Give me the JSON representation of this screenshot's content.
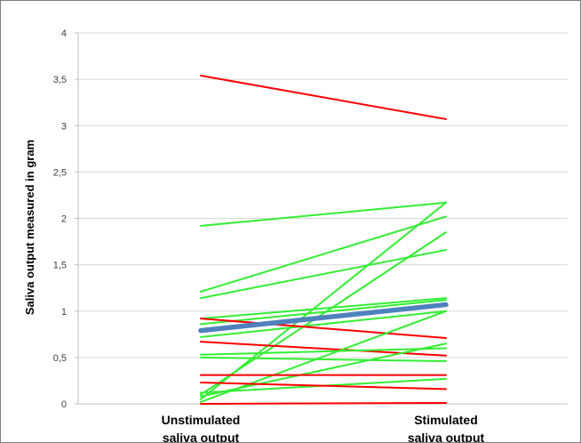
{
  "chart_data": {
    "type": "line",
    "title": "",
    "xlabel": "",
    "ylabel": "Saliva output measured in gram",
    "categories": [
      "Unstimulated\nsaliva output",
      "Stimulated\nsaliva output"
    ],
    "ylim": [
      0,
      4
    ],
    "yticks": [
      0,
      0.5,
      1,
      1.5,
      2,
      2.5,
      3,
      3.5,
      4
    ],
    "ytick_labels": [
      "0",
      "0,5",
      "1",
      "1,5",
      "2",
      "2,5",
      "3",
      "3,5",
      "4"
    ],
    "grid": true,
    "legend": "none",
    "series": [
      {
        "values": [
          3.54,
          3.07
        ],
        "color": "#ff0000"
      },
      {
        "values": [
          1.92,
          2.17
        ],
        "color": "#33ee33"
      },
      {
        "values": [
          1.21,
          2.02
        ],
        "color": "#33ee33"
      },
      {
        "values": [
          1.14,
          1.66
        ],
        "color": "#33ee33"
      },
      {
        "values": [
          0.05,
          2.17
        ],
        "color": "#33ee33"
      },
      {
        "values": [
          0.1,
          1.85
        ],
        "color": "#33ee33"
      },
      {
        "values": [
          0.92,
          1.14
        ],
        "color": "#33ee33"
      },
      {
        "values": [
          0.86,
          1.12
        ],
        "color": "#33ee33"
      },
      {
        "values": [
          0.72,
          1.0
        ],
        "color": "#33ee33"
      },
      {
        "values": [
          0.92,
          0.71
        ],
        "color": "#ff0000"
      },
      {
        "values": [
          0.67,
          0.52
        ],
        "color": "#ff0000"
      },
      {
        "values": [
          0.53,
          0.6
        ],
        "color": "#33ee33"
      },
      {
        "values": [
          0.5,
          0.46
        ],
        "color": "#33ee33"
      },
      {
        "values": [
          0.08,
          0.65
        ],
        "color": "#33ee33"
      },
      {
        "values": [
          0.02,
          1.0
        ],
        "color": "#33ee33"
      },
      {
        "values": [
          0.31,
          0.31
        ],
        "color": "#ff0000"
      },
      {
        "values": [
          0.12,
          0.27
        ],
        "color": "#33ee33"
      },
      {
        "values": [
          0.23,
          0.16
        ],
        "color": "#ff0000"
      },
      {
        "values": [
          0.0,
          0.01
        ],
        "color": "#ff0000"
      },
      {
        "values": [
          0.79,
          1.07
        ],
        "color": "#4f81bd",
        "highlight": true
      }
    ]
  }
}
